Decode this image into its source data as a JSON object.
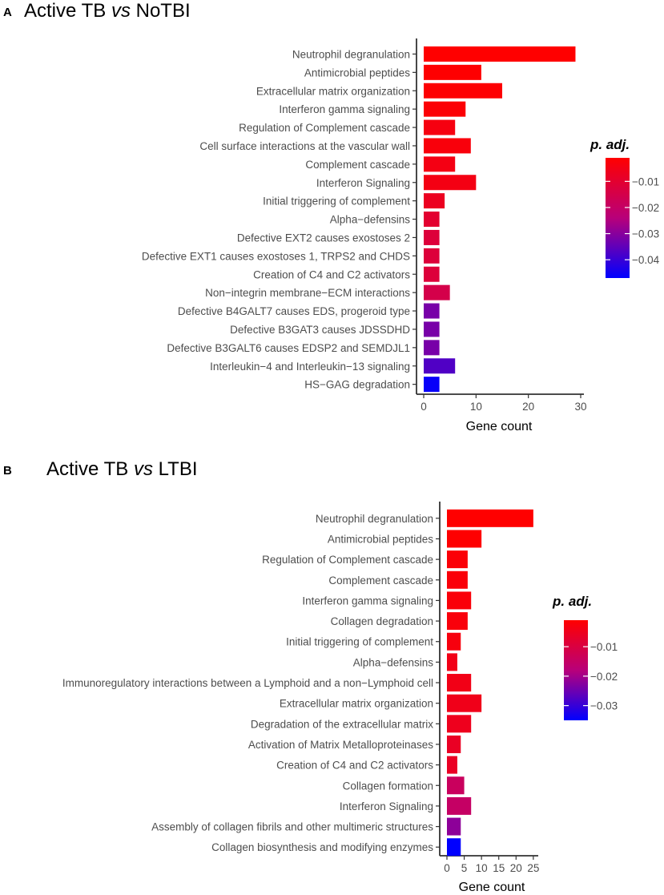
{
  "chart_data": [
    {
      "type": "bar",
      "orientation": "horizontal",
      "panel_letter": "A",
      "title_parts": [
        "Active TB ",
        "vs",
        " NoTBI"
      ],
      "categories": [
        "Neutrophil degranulation",
        "Antimicrobial peptides",
        "Extracellular matrix organization",
        "Interferon gamma signaling",
        "Regulation of Complement cascade",
        "Cell surface interactions at the vascular wall",
        "Complement cascade",
        "Interferon Signaling",
        "Initial triggering of complement",
        "Alpha−defensins",
        "Defective EXT2 causes exostoses 2",
        "Defective EXT1 causes exostoses 1, TRPS2 and CHDS",
        "Creation of C4 and C2 activators",
        "Non−integrin membrane−ECM interactions",
        "Defective B4GALT7 causes EDS, progeroid type",
        "Defective B3GAT3 causes JDSSDHD",
        "Defective B3GALT6 causes EDSP2 and SEMDJL1",
        "Interleukin−4 and Interleukin−13 signaling",
        "HS−GAG degradation"
      ],
      "values": [
        29,
        11,
        15,
        8,
        6,
        9,
        6,
        10,
        4,
        3,
        3,
        3,
        3,
        5,
        3,
        3,
        3,
        6,
        3
      ],
      "p_adj": [
        0.001,
        0.0012,
        0.0015,
        0.002,
        0.004,
        0.003,
        0.0045,
        0.0045,
        0.007,
        0.01,
        0.012,
        0.012,
        0.012,
        0.015,
        0.032,
        0.032,
        0.032,
        0.037,
        0.046
      ],
      "xlabel": "Gene count",
      "xlim": [
        0,
        30
      ],
      "xticks": [
        0,
        10,
        20,
        30
      ],
      "legend": {
        "title": "p. adj.",
        "range": [
          0.001,
          0.047
        ],
        "ticks": [
          0.01,
          0.02,
          0.03,
          0.04
        ],
        "tick_labels": [
          "0.01",
          "0.02",
          "0.03",
          "0.04"
        ],
        "placement": "right"
      }
    },
    {
      "type": "bar",
      "orientation": "horizontal",
      "panel_letter": "B",
      "title_parts": [
        "Active TB ",
        "vs",
        " LTBI"
      ],
      "categories": [
        "Neutrophil degranulation",
        "Antimicrobial peptides",
        "Regulation of Complement cascade",
        "Complement cascade",
        "Interferon gamma signaling",
        "Collagen degradation",
        "Initial triggering of complement",
        "Alpha−defensins",
        "Immunoregulatory interactions between a Lymphoid and a non−Lymphoid cell",
        "Extracellular matrix organization",
        "Degradation of the extracellular matrix",
        "Activation of Matrix Metalloproteinases",
        "Creation of C4 and C2 activators",
        "Collagen formation",
        "Interferon Signaling",
        "Assembly of collagen fibrils and other multimeric structures",
        "Collagen biosynthesis and modifying enzymes"
      ],
      "values": [
        25,
        10,
        6,
        6,
        7,
        6,
        4,
        3,
        7,
        10,
        7,
        4,
        3,
        5,
        7,
        4,
        4
      ],
      "p_adj": [
        0.001,
        0.0012,
        0.002,
        0.0022,
        0.0022,
        0.0025,
        0.003,
        0.004,
        0.004,
        0.0045,
        0.005,
        0.006,
        0.006,
        0.014,
        0.015,
        0.022,
        0.035
      ],
      "xlabel": "Gene count",
      "xlim": [
        0,
        25.5
      ],
      "xticks": [
        0,
        5,
        10,
        15,
        20,
        25
      ],
      "legend": {
        "title": "p. adj.",
        "range": [
          0.001,
          0.035
        ],
        "ticks": [
          0.01,
          0.02,
          0.03
        ],
        "tick_labels": [
          "0.01",
          "0.02",
          "0.03"
        ],
        "placement": "right"
      }
    }
  ]
}
